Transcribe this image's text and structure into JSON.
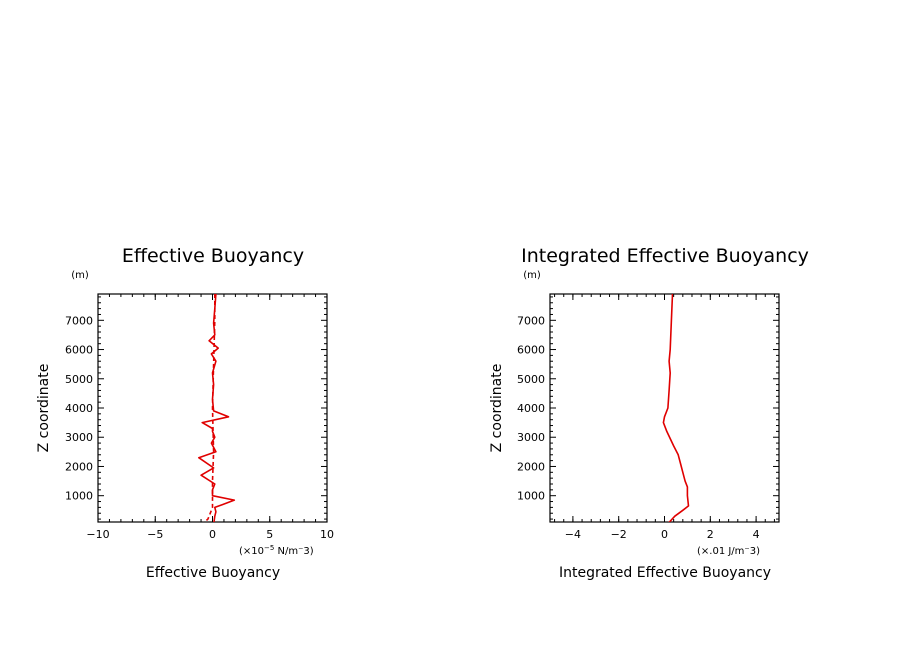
{
  "colors": {
    "series": "#e00000",
    "axis": "#000000",
    "background": "#ffffff"
  },
  "chart_data": [
    {
      "type": "line",
      "title": "Effective Buoyancy",
      "xlabel": "Effective Buoyancy",
      "ylabel": "Z coordinate",
      "y_unit": "(m)",
      "x_unit_prefix": "(×10",
      "x_unit_exp": "−5",
      "x_unit_suffix": " N/m⁻3)",
      "xlim": [
        -10,
        10
      ],
      "ylim": [
        100,
        7900
      ],
      "xticks": [
        -10,
        -5,
        0,
        5,
        10
      ],
      "xtick_labels": [
        "−10",
        "−5",
        "0",
        "5",
        "10"
      ],
      "yticks": [
        1000,
        2000,
        3000,
        4000,
        5000,
        6000,
        7000
      ],
      "ytick_labels": [
        "1000",
        "2000",
        "3000",
        "4000",
        "5000",
        "6000",
        "7000"
      ],
      "grid": false,
      "series": [
        {
          "style": "solid",
          "x": [
            0.1,
            0.2,
            0.3,
            0.2,
            0.9,
            1.9,
            0.0,
            0.0,
            0.2,
            -1.0,
            0.1,
            -1.2,
            0.3,
            -0.1,
            0.2,
            0.0,
            0.0,
            -0.9,
            1.4,
            0.1,
            0.0,
            0.1,
            0.0,
            0.3,
            -0.1,
            0.5,
            -0.3,
            0.2,
            0.1,
            0.2,
            0.3
          ],
          "y": [
            0,
            300,
            450,
            600,
            700,
            850,
            1000,
            1200,
            1400,
            1700,
            1950,
            2300,
            2500,
            2800,
            3000,
            3200,
            3300,
            3500,
            3700,
            3900,
            4300,
            4800,
            5200,
            5600,
            5850,
            6050,
            6300,
            6500,
            6900,
            7400,
            7900
          ]
        },
        {
          "style": "dashed",
          "x": [
            -1.0,
            -0.4,
            -0.3,
            0.0,
            0.0,
            0.1,
            0.0,
            0.1,
            0.2,
            0.2
          ],
          "y": [
            0,
            200,
            300,
            600,
            1500,
            2500,
            4000,
            5500,
            7000,
            7900
          ]
        }
      ]
    },
    {
      "type": "line",
      "title": "Integrated Effective Buoyancy",
      "xlabel": "Integrated Effective Buoyancy",
      "ylabel": "Z coordinate",
      "y_unit": "(m)",
      "x_unit": "(×.01 J/m⁻3)",
      "xlim": [
        -5,
        5
      ],
      "ylim": [
        100,
        7900
      ],
      "xticks": [
        -4,
        -2,
        0,
        2,
        4
      ],
      "xtick_labels": [
        "−4",
        "−2",
        "0",
        "2",
        "4"
      ],
      "yticks": [
        1000,
        2000,
        3000,
        4000,
        5000,
        6000,
        7000
      ],
      "ytick_labels": [
        "1000",
        "2000",
        "3000",
        "4000",
        "5000",
        "6000",
        "7000"
      ],
      "grid": false,
      "series": [
        {
          "style": "solid",
          "x": [
            0.1,
            0.45,
            0.8,
            1.05,
            1.0,
            1.0,
            0.9,
            0.8,
            0.7,
            0.6,
            0.4,
            0.1,
            -0.05,
            0.0,
            0.15,
            0.2,
            0.25,
            0.2,
            0.25,
            0.3,
            0.35
          ],
          "y": [
            0,
            300,
            500,
            650,
            1000,
            1300,
            1500,
            1800,
            2100,
            2400,
            2700,
            3200,
            3500,
            3700,
            4000,
            4600,
            5200,
            5600,
            6000,
            7000,
            7900
          ]
        }
      ]
    }
  ]
}
